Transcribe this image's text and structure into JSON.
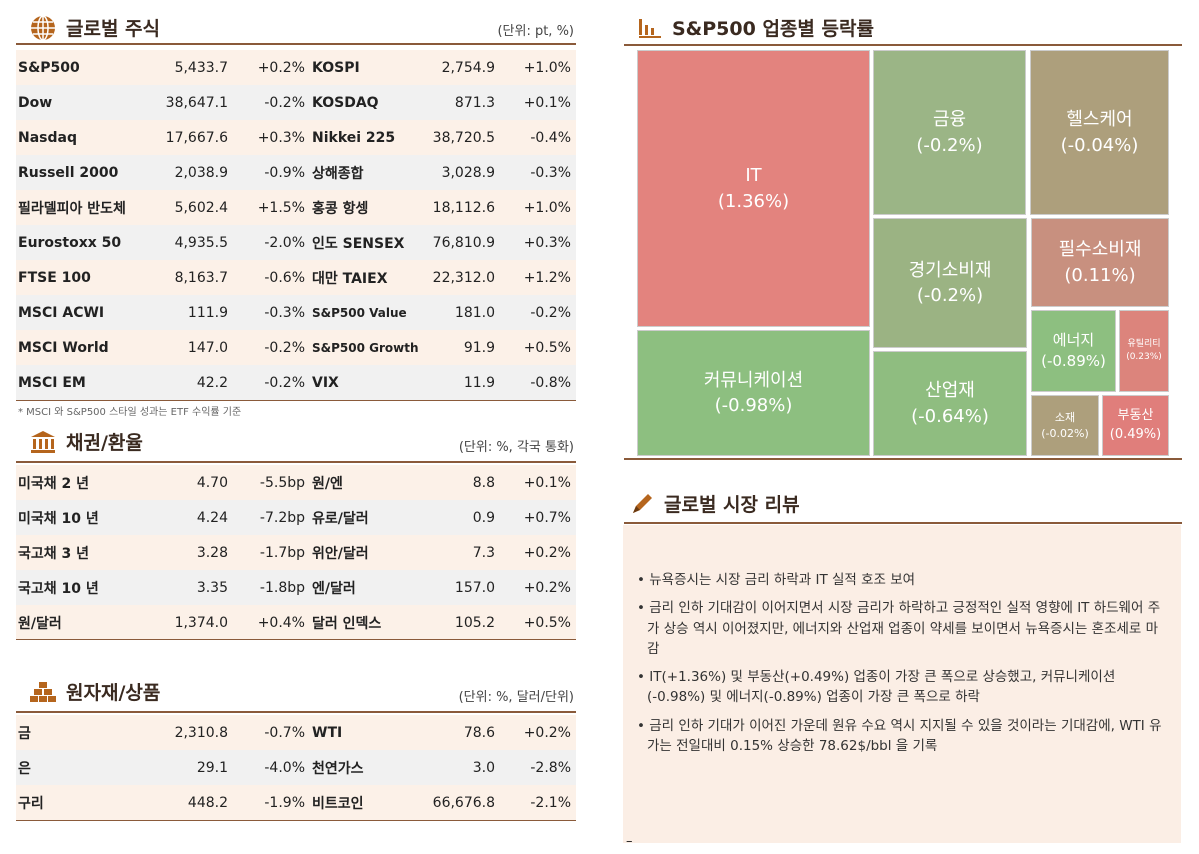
{
  "equities": {
    "title": "글로벌 주식",
    "unit": "(단위: pt, %)",
    "icon": "globe-icon",
    "rows": [
      [
        "S&P500",
        "5,433.7",
        "+0.2%",
        "KOSPI",
        "2,754.9",
        "+1.0%"
      ],
      [
        "Dow",
        "38,647.1",
        "-0.2%",
        "KOSDAQ",
        "871.3",
        "+0.1%"
      ],
      [
        "Nasdaq",
        "17,667.6",
        "+0.3%",
        "Nikkei 225",
        "38,720.5",
        "-0.4%"
      ],
      [
        "Russell 2000",
        "2,038.9",
        "-0.9%",
        "상해종합",
        "3,028.9",
        "-0.3%"
      ],
      [
        "필라델피아 반도체",
        "5,602.4",
        "+1.5%",
        "홍콩 항셍",
        "18,112.6",
        "+1.0%"
      ],
      [
        "Eurostoxx 50",
        "4,935.5",
        "-2.0%",
        "인도 SENSEX",
        "76,810.9",
        "+0.3%"
      ],
      [
        "FTSE 100",
        "8,163.7",
        "-0.6%",
        "대만 TAIEX",
        "22,312.0",
        "+1.2%"
      ],
      [
        "MSCI ACWI",
        "111.9",
        "-0.3%",
        "S&P500 Value",
        "181.0",
        "-0.2%"
      ],
      [
        "MSCI World",
        "147.0",
        "-0.2%",
        "S&P500 Growth",
        "91.9",
        "+0.5%"
      ],
      [
        "MSCI EM",
        "42.2",
        "-0.2%",
        "VIX",
        "11.9",
        "-0.8%"
      ]
    ],
    "note": "* MSCI 와 S&P500 스타일 성과는 ETF 수익률 기준"
  },
  "bonds": {
    "title": "채권/환율",
    "unit": "(단위: %, 각국 통화)",
    "icon": "bank-icon",
    "rows": [
      [
        "미국채 2 년",
        "4.70",
        "-5.5bp",
        "원/엔",
        "8.8",
        "+0.1%"
      ],
      [
        "미국채 10 년",
        "4.24",
        "-7.2bp",
        "유로/달러",
        "0.9",
        "+0.7%"
      ],
      [
        "국고채 3 년",
        "3.28",
        "-1.7bp",
        "위안/달러",
        "7.3",
        "+0.2%"
      ],
      [
        "국고채 10 년",
        "3.35",
        "-1.8bp",
        "엔/달러",
        "157.0",
        "+0.2%"
      ],
      [
        "원/달러",
        "1,374.0",
        "+0.4%",
        "달러 인덱스",
        "105.2",
        "+0.5%"
      ]
    ]
  },
  "commodities": {
    "title": "원자재/상품",
    "unit": "(단위: %, 달러/단위)",
    "icon": "gold-bars-icon",
    "rows": [
      [
        "금",
        "2,310.8",
        "-0.7%",
        "WTI",
        "78.6",
        "+0.2%"
      ],
      [
        "은",
        "29.1",
        "-4.0%",
        "천연가스",
        "3.0",
        "-2.8%"
      ],
      [
        "구리",
        "448.2",
        "-1.9%",
        "비트코인",
        "66,676.8",
        "-2.1%"
      ]
    ]
  },
  "sectors": {
    "title": "S&P500 업종별 등락률",
    "icon": "bar-chart-icon",
    "items": [
      {
        "name": "IT",
        "value": "(1.36%)",
        "color": "#e3837e"
      },
      {
        "name": "커뮤니케이션",
        "value": "(-0.98%)",
        "color": "#8dbf80"
      },
      {
        "name": "금융",
        "value": "(-0.2%)",
        "color": "#9bb586"
      },
      {
        "name": "헬스케어",
        "value": "(-0.04%)",
        "color": "#ad9f7c"
      },
      {
        "name": "경기소비재",
        "value": "(-0.2%)",
        "color": "#9bb383"
      },
      {
        "name": "산업재",
        "value": "(-0.64%)",
        "color": "#8fbd80"
      },
      {
        "name": "필수소비재",
        "value": "(0.11%)",
        "color": "#c8907f"
      },
      {
        "name": "에너지",
        "value": "(-0.89%)",
        "color": "#8dbf80"
      },
      {
        "name": "유틸리티",
        "value": "(0.23%)",
        "color": "#dc847c"
      },
      {
        "name": "소재",
        "value": "(-0.02%)",
        "color": "#ad9f7c"
      },
      {
        "name": "부동산",
        "value": "(0.49%)",
        "color": "#e07e7b"
      }
    ]
  },
  "review": {
    "title": "글로벌 시장 리뷰",
    "icon": "pen-icon",
    "bullets": [
      "뉴욕증시는 시장 금리 하락과 IT 실적 호조 보여",
      "금리 인하 기대감이 이어지면서 시장 금리가 하락하고 긍정적인 실적 영향에 IT 하드웨어 주가 상승 역시 이어졌지만, 에너지와 산업재 업종이 약세를 보이면서 뉴욕증시는 혼조세로 마감",
      "IT(+1.36%) 및 부동산(+0.49%) 업종이 가장 큰 폭으로 상승했고, 커뮤니케이션 (-0.98%) 및 에너지(-0.89%) 업종이 가장 큰 폭으로 하락",
      "금리 인하 기대가 이어진 가운데 원유 수요 역시 지지될 수 있을 것이라는 기대감에, WTI 유가는 전일대비 0.15% 상승한 78.62$/bbl 을 기록"
    ],
    "footer": "–"
  }
}
